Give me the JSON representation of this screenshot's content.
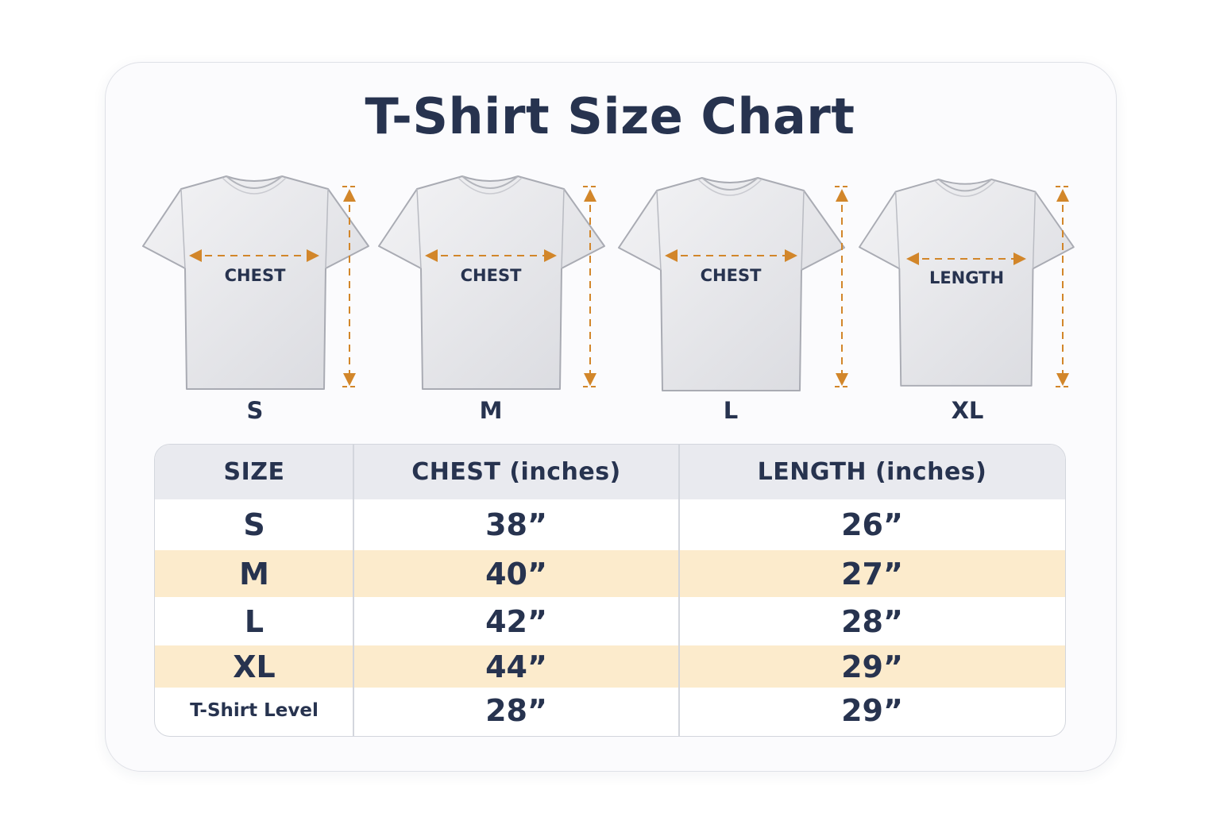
{
  "title": "T-Shirt Size Chart",
  "colors": {
    "text": "#27334f",
    "accent_arrow": "#d2862a",
    "stripe": "#fcebcc",
    "header": "#e9eaef"
  },
  "shirts": [
    {
      "size": "S",
      "label": "CHEST"
    },
    {
      "size": "M",
      "label": "CHEST"
    },
    {
      "size": "L",
      "label": "CHEST"
    },
    {
      "size": "XL",
      "label": "LENGTH"
    }
  ],
  "table": {
    "headers": [
      "SIZE",
      "CHEST (inches)",
      "LENGTH (inches)"
    ],
    "rows": [
      [
        "S",
        "38”",
        "26”"
      ],
      [
        "M",
        "40”",
        "27”"
      ],
      [
        "L",
        "42”",
        "28”"
      ],
      [
        "XL",
        "44”",
        "29”"
      ],
      [
        "T-Shirt Level",
        "28”",
        "29”"
      ]
    ]
  }
}
